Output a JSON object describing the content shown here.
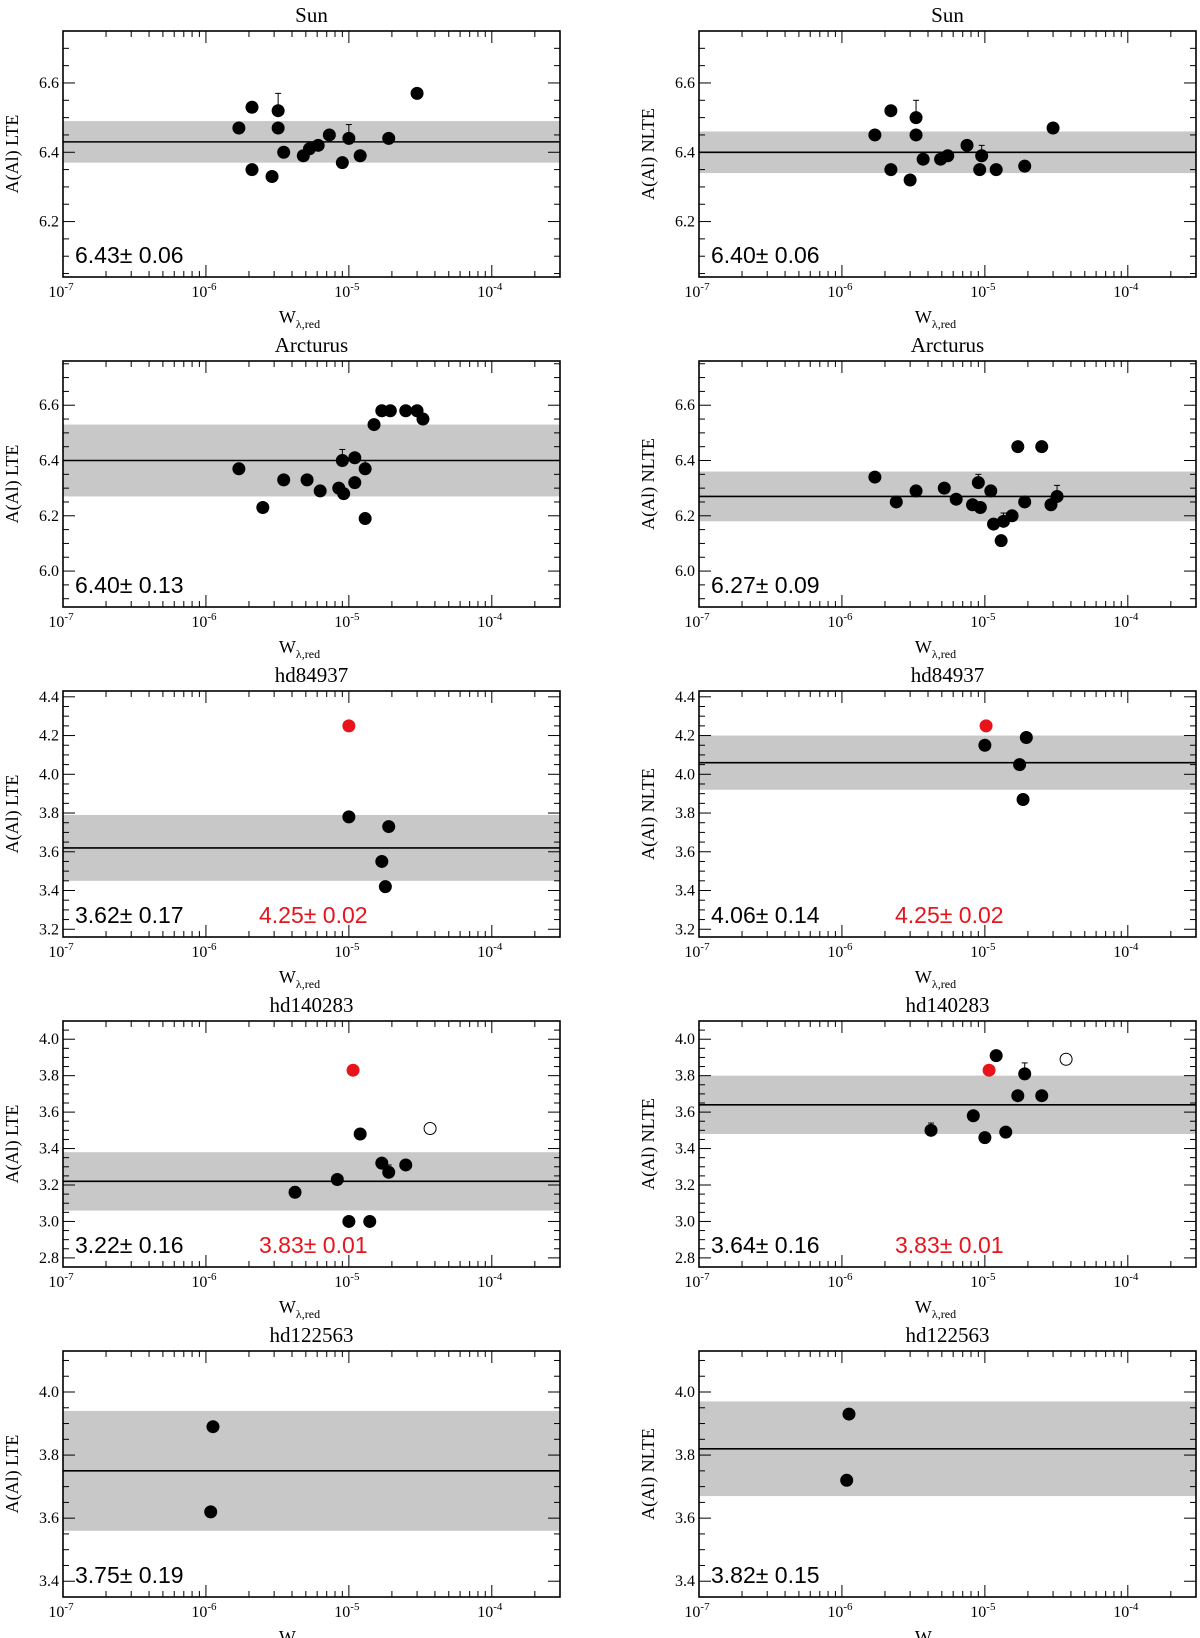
{
  "figure": {
    "xlabel_main": "W",
    "xlabel_sub": "λ,red",
    "x_tick_base": "10",
    "x_tick_exponents": [
      "-7",
      "-6",
      "-5",
      "-4"
    ],
    "colors": {
      "shade": "#c8c8c8",
      "point": "#000000",
      "highlight": "#e8141c",
      "open": "#ffffff"
    }
  },
  "chart_data": [
    {
      "type": "scatter",
      "title": "Sun",
      "ylabel": "A(Al) LTE",
      "xscale": "log",
      "xlim": [
        1e-07,
        0.0003
      ],
      "ylim": [
        6.04,
        6.75
      ],
      "yticks": [
        "6.2",
        "6.4",
        "6.6"
      ],
      "ytick_values": [
        6.2,
        6.4,
        6.6
      ],
      "mean": 6.43,
      "sigma": 0.06,
      "mean_label": "6.43± 0.06",
      "highlight_label": null,
      "points": [
        {
          "x": 1.7e-06,
          "y": 6.47
        },
        {
          "x": 2.1e-06,
          "y": 6.53
        },
        {
          "x": 2.1e-06,
          "y": 6.35
        },
        {
          "x": 2.9e-06,
          "y": 6.33
        },
        {
          "x": 3.2e-06,
          "y": 6.52,
          "err": 0.05
        },
        {
          "x": 3.2e-06,
          "y": 6.47
        },
        {
          "x": 3.5e-06,
          "y": 6.4
        },
        {
          "x": 4.8e-06,
          "y": 6.39
        },
        {
          "x": 5.3e-06,
          "y": 6.41
        },
        {
          "x": 6.1e-06,
          "y": 6.42
        },
        {
          "x": 7.3e-06,
          "y": 6.45
        },
        {
          "x": 9e-06,
          "y": 6.37
        },
        {
          "x": 1e-05,
          "y": 6.44,
          "err": 0.04
        },
        {
          "x": 1.2e-05,
          "y": 6.39
        },
        {
          "x": 1.9e-05,
          "y": 6.44
        },
        {
          "x": 3e-05,
          "y": 6.57
        }
      ]
    },
    {
      "type": "scatter",
      "title": "Sun",
      "ylabel": "A(Al) NLTE",
      "xscale": "log",
      "xlim": [
        1e-07,
        0.0003
      ],
      "ylim": [
        6.04,
        6.75
      ],
      "yticks": [
        "6.2",
        "6.4",
        "6.6"
      ],
      "ytick_values": [
        6.2,
        6.4,
        6.6
      ],
      "mean": 6.4,
      "sigma": 0.06,
      "mean_label": "6.40± 0.06",
      "highlight_label": null,
      "points": [
        {
          "x": 1.7e-06,
          "y": 6.45
        },
        {
          "x": 2.2e-06,
          "y": 6.52
        },
        {
          "x": 2.2e-06,
          "y": 6.35
        },
        {
          "x": 3e-06,
          "y": 6.32
        },
        {
          "x": 3.3e-06,
          "y": 6.5,
          "err": 0.05
        },
        {
          "x": 3.3e-06,
          "y": 6.45
        },
        {
          "x": 3.7e-06,
          "y": 6.38
        },
        {
          "x": 4.9e-06,
          "y": 6.38
        },
        {
          "x": 5.5e-06,
          "y": 6.39
        },
        {
          "x": 7.5e-06,
          "y": 6.42
        },
        {
          "x": 9.2e-06,
          "y": 6.35
        },
        {
          "x": 9.5e-06,
          "y": 6.39,
          "err": 0.03
        },
        {
          "x": 1.2e-05,
          "y": 6.35
        },
        {
          "x": 1.9e-05,
          "y": 6.36
        },
        {
          "x": 3e-05,
          "y": 6.47
        }
      ]
    },
    {
      "type": "scatter",
      "title": "Arcturus",
      "ylabel": "A(Al) LTE",
      "xscale": "log",
      "xlim": [
        1e-07,
        0.0003
      ],
      "ylim": [
        5.87,
        6.76
      ],
      "yticks": [
        "6.0",
        "6.2",
        "6.4",
        "6.6"
      ],
      "ytick_values": [
        6.0,
        6.2,
        6.4,
        6.6
      ],
      "mean": 6.4,
      "sigma": 0.13,
      "mean_label": "6.40± 0.13",
      "highlight_label": null,
      "points": [
        {
          "x": 1.7e-06,
          "y": 6.37
        },
        {
          "x": 2.5e-06,
          "y": 6.23
        },
        {
          "x": 3.5e-06,
          "y": 6.33
        },
        {
          "x": 5.1e-06,
          "y": 6.33
        },
        {
          "x": 6.3e-06,
          "y": 6.29
        },
        {
          "x": 8.5e-06,
          "y": 6.3
        },
        {
          "x": 9e-06,
          "y": 6.4,
          "err": 0.04
        },
        {
          "x": 9.2e-06,
          "y": 6.28
        },
        {
          "x": 1.1e-05,
          "y": 6.41
        },
        {
          "x": 1.1e-05,
          "y": 6.32
        },
        {
          "x": 1.3e-05,
          "y": 6.37,
          "err": 0.03
        },
        {
          "x": 1.3e-05,
          "y": 6.19
        },
        {
          "x": 1.5e-05,
          "y": 6.53
        },
        {
          "x": 1.7e-05,
          "y": 6.58
        },
        {
          "x": 1.95e-05,
          "y": 6.58
        },
        {
          "x": 2.5e-05,
          "y": 6.58
        },
        {
          "x": 3e-05,
          "y": 6.58
        },
        {
          "x": 3.3e-05,
          "y": 6.55
        }
      ]
    },
    {
      "type": "scatter",
      "title": "Arcturus",
      "ylabel": "A(Al) NLTE",
      "xscale": "log",
      "xlim": [
        1e-07,
        0.0003
      ],
      "ylim": [
        5.87,
        6.76
      ],
      "yticks": [
        "6.0",
        "6.2",
        "6.4",
        "6.6"
      ],
      "ytick_values": [
        6.0,
        6.2,
        6.4,
        6.6
      ],
      "mean": 6.27,
      "sigma": 0.09,
      "mean_label": "6.27± 0.09",
      "highlight_label": null,
      "points": [
        {
          "x": 1.7e-06,
          "y": 6.34
        },
        {
          "x": 2.4e-06,
          "y": 6.25
        },
        {
          "x": 3.3e-06,
          "y": 6.29
        },
        {
          "x": 5.2e-06,
          "y": 6.3
        },
        {
          "x": 6.3e-06,
          "y": 6.26
        },
        {
          "x": 8.2e-06,
          "y": 6.24
        },
        {
          "x": 9e-06,
          "y": 6.32,
          "err": 0.03
        },
        {
          "x": 9.3e-06,
          "y": 6.23
        },
        {
          "x": 1.1e-05,
          "y": 6.29
        },
        {
          "x": 1.15e-05,
          "y": 6.17
        },
        {
          "x": 1.3e-05,
          "y": 6.11
        },
        {
          "x": 1.35e-05,
          "y": 6.18,
          "err": 0.03
        },
        {
          "x": 1.55e-05,
          "y": 6.2
        },
        {
          "x": 1.7e-05,
          "y": 6.45
        },
        {
          "x": 1.9e-05,
          "y": 6.25
        },
        {
          "x": 2.5e-05,
          "y": 6.45
        },
        {
          "x": 2.9e-05,
          "y": 6.24,
          "err": 0.03
        },
        {
          "x": 3.2e-05,
          "y": 6.27,
          "err": 0.04
        }
      ]
    },
    {
      "type": "scatter",
      "title": "hd84937",
      "ylabel": "A(Al) LTE",
      "xscale": "log",
      "xlim": [
        1e-07,
        0.0003
      ],
      "ylim": [
        3.16,
        4.43
      ],
      "yticks": [
        "3.2",
        "3.4",
        "3.6",
        "3.8",
        "4.0",
        "4.2",
        "4.4"
      ],
      "ytick_values": [
        3.2,
        3.4,
        3.6,
        3.8,
        4.0,
        4.2,
        4.4
      ],
      "mean": 3.62,
      "sigma": 0.17,
      "mean_label": "3.62± 0.17",
      "highlight_label": "4.25± 0.02",
      "points": [
        {
          "x": 1e-05,
          "y": 3.78
        },
        {
          "x": 1.7e-05,
          "y": 3.55
        },
        {
          "x": 1.8e-05,
          "y": 3.42
        },
        {
          "x": 1.9e-05,
          "y": 3.73
        },
        {
          "x": 1e-05,
          "y": 4.25,
          "kind": "highlight"
        }
      ]
    },
    {
      "type": "scatter",
      "title": "hd84937",
      "ylabel": "A(Al) NLTE",
      "xscale": "log",
      "xlim": [
        1e-07,
        0.0003
      ],
      "ylim": [
        3.16,
        4.43
      ],
      "yticks": [
        "3.2",
        "3.4",
        "3.6",
        "3.8",
        "4.0",
        "4.2",
        "4.4"
      ],
      "ytick_values": [
        3.2,
        3.4,
        3.6,
        3.8,
        4.0,
        4.2,
        4.4
      ],
      "mean": 4.06,
      "sigma": 0.14,
      "mean_label": "4.06± 0.14",
      "highlight_label": "4.25± 0.02",
      "points": [
        {
          "x": 1e-05,
          "y": 4.15
        },
        {
          "x": 1.75e-05,
          "y": 4.05
        },
        {
          "x": 1.85e-05,
          "y": 3.87
        },
        {
          "x": 1.95e-05,
          "y": 4.19
        },
        {
          "x": 1.02e-05,
          "y": 4.25,
          "kind": "highlight"
        }
      ]
    },
    {
      "type": "scatter",
      "title": "hd140283",
      "ylabel": "A(Al) LTE",
      "xscale": "log",
      "xlim": [
        1e-07,
        0.0003
      ],
      "ylim": [
        2.75,
        4.1
      ],
      "yticks": [
        "2.8",
        "3.0",
        "3.2",
        "3.4",
        "3.6",
        "3.8",
        "4.0"
      ],
      "ytick_values": [
        2.8,
        3.0,
        3.2,
        3.4,
        3.6,
        3.8,
        4.0
      ],
      "mean": 3.22,
      "sigma": 0.16,
      "mean_label": "3.22± 0.16",
      "highlight_label": "3.83± 0.01",
      "points": [
        {
          "x": 4.2e-06,
          "y": 3.16,
          "err": 0.03
        },
        {
          "x": 8.3e-06,
          "y": 3.23
        },
        {
          "x": 1e-05,
          "y": 3.0
        },
        {
          "x": 1.2e-05,
          "y": 3.48
        },
        {
          "x": 1.4e-05,
          "y": 3.0
        },
        {
          "x": 1.7e-05,
          "y": 3.32
        },
        {
          "x": 1.9e-05,
          "y": 3.27,
          "err": 0.04
        },
        {
          "x": 2.5e-05,
          "y": 3.31
        },
        {
          "x": 3.7e-05,
          "y": 3.51,
          "kind": "open"
        },
        {
          "x": 1.07e-05,
          "y": 3.83,
          "kind": "highlight"
        }
      ]
    },
    {
      "type": "scatter",
      "title": "hd140283",
      "ylabel": "A(Al) NLTE",
      "xscale": "log",
      "xlim": [
        1e-07,
        0.0003
      ],
      "ylim": [
        2.75,
        4.1
      ],
      "yticks": [
        "2.8",
        "3.0",
        "3.2",
        "3.4",
        "3.6",
        "3.8",
        "4.0"
      ],
      "ytick_values": [
        2.8,
        3.0,
        3.2,
        3.4,
        3.6,
        3.8,
        4.0
      ],
      "mean": 3.64,
      "sigma": 0.16,
      "mean_label": "3.64± 0.16",
      "highlight_label": "3.83± 0.01",
      "points": [
        {
          "x": 4.2e-06,
          "y": 3.5,
          "err": 0.04
        },
        {
          "x": 8.3e-06,
          "y": 3.58
        },
        {
          "x": 1e-05,
          "y": 3.46
        },
        {
          "x": 1.2e-05,
          "y": 3.91
        },
        {
          "x": 1.4e-05,
          "y": 3.49
        },
        {
          "x": 1.7e-05,
          "y": 3.69
        },
        {
          "x": 1.9e-05,
          "y": 3.81,
          "err": 0.06
        },
        {
          "x": 2.5e-05,
          "y": 3.69
        },
        {
          "x": 3.7e-05,
          "y": 3.89,
          "kind": "open"
        },
        {
          "x": 1.07e-05,
          "y": 3.83,
          "kind": "highlight"
        }
      ]
    },
    {
      "type": "scatter",
      "title": "hd122563",
      "ylabel": "A(Al) LTE",
      "xscale": "log",
      "xlim": [
        1e-07,
        0.0003
      ],
      "ylim": [
        3.35,
        4.13
      ],
      "yticks": [
        "3.4",
        "3.6",
        "3.8",
        "4.0"
      ],
      "ytick_values": [
        3.4,
        3.6,
        3.8,
        4.0
      ],
      "mean": 3.75,
      "sigma": 0.19,
      "mean_label": "3.75± 0.19",
      "highlight_label": null,
      "points": [
        {
          "x": 1.12e-06,
          "y": 3.89
        },
        {
          "x": 1.08e-06,
          "y": 3.62
        }
      ]
    },
    {
      "type": "scatter",
      "title": "hd122563",
      "ylabel": "A(Al) NLTE",
      "xscale": "log",
      "xlim": [
        1e-07,
        0.0003
      ],
      "ylim": [
        3.35,
        4.13
      ],
      "yticks": [
        "3.4",
        "3.6",
        "3.8",
        "4.0"
      ],
      "ytick_values": [
        3.4,
        3.6,
        3.8,
        4.0
      ],
      "mean": 3.82,
      "sigma": 0.15,
      "mean_label": "3.82± 0.15",
      "highlight_label": null,
      "points": [
        {
          "x": 1.12e-06,
          "y": 3.93
        },
        {
          "x": 1.08e-06,
          "y": 3.72
        }
      ]
    }
  ]
}
